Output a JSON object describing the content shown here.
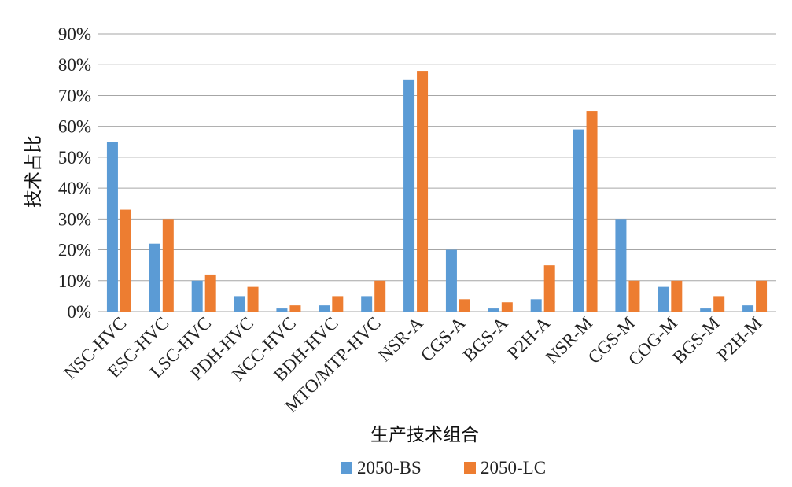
{
  "chart_data": {
    "type": "bar",
    "xlabel": "生产技术组合",
    "ylabel": "技术占比",
    "categories": [
      "NSC-HVC",
      "ESC-HVC",
      "LSC-HVC",
      "PDH-HVC",
      "NCC-HVC",
      "BDH-HVC",
      "MTO/MTP-HVC",
      "NSR-A",
      "CGS-A",
      "BGS-A",
      "P2H-A",
      "NSR-M",
      "CGS-M",
      "COG-M",
      "BGS-M",
      "P2H-M"
    ],
    "series": [
      {
        "name": "2050-BS",
        "color": "#5b9bd5",
        "values": [
          55,
          22,
          10,
          5,
          1,
          2,
          5,
          75,
          20,
          1,
          4,
          59,
          30,
          8,
          1,
          2
        ]
      },
      {
        "name": "2050-LC",
        "color": "#ed7d31",
        "values": [
          33,
          30,
          12,
          8,
          2,
          5,
          10,
          78,
          4,
          3,
          15,
          65,
          10,
          10,
          5,
          10
        ]
      }
    ],
    "ylim": [
      0,
      90
    ],
    "yticks": [
      "0%",
      "10%",
      "20%",
      "30%",
      "40%",
      "50%",
      "60%",
      "70%",
      "80%",
      "90%"
    ],
    "grid": true,
    "legend": "bottom"
  }
}
